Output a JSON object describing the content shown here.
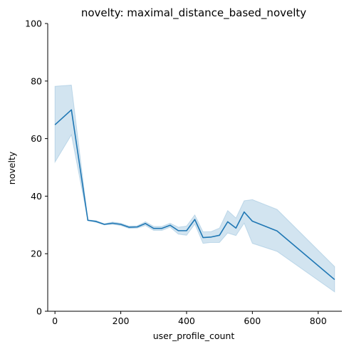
{
  "chart_data": {
    "type": "line",
    "title": "novelty: maximal_distance_based_novelty",
    "xlabel": "user_profile_count",
    "ylabel": "novelty",
    "xlim": [
      -22,
      872
    ],
    "ylim": [
      0,
      100
    ],
    "xticks": [
      0,
      200,
      400,
      600,
      800
    ],
    "yticks": [
      0,
      20,
      40,
      60,
      80,
      100
    ],
    "grid": false,
    "colors": {
      "line": "#1f77b4",
      "band": "#1f77b4"
    },
    "series": [
      {
        "x": [
          0,
          50,
          100,
          125,
          150,
          175,
          200,
          225,
          250,
          275,
          300,
          325,
          350,
          375,
          400,
          425,
          450,
          475,
          500,
          525,
          550,
          575,
          600,
          675,
          850
        ],
        "y": [
          64.8,
          70.0,
          31.6,
          31.2,
          30.2,
          30.6,
          30.2,
          29.2,
          29.3,
          30.5,
          28.8,
          28.8,
          29.9,
          28.0,
          28.0,
          31.9,
          25.6,
          25.8,
          26.4,
          31.1,
          28.9,
          34.5,
          31.3,
          27.9,
          11.0
        ],
        "ci_low": [
          51.8,
          61.3,
          31.6,
          30.9,
          30.0,
          30.2,
          29.8,
          28.8,
          28.9,
          29.8,
          28.1,
          28.1,
          29.2,
          26.8,
          26.4,
          30.3,
          23.6,
          23.9,
          23.9,
          27.2,
          26.3,
          30.6,
          23.6,
          20.8,
          6.7
        ],
        "ci_high": [
          78.2,
          78.6,
          31.7,
          31.5,
          30.4,
          31.0,
          30.6,
          29.6,
          29.7,
          31.1,
          29.5,
          29.5,
          30.6,
          29.2,
          29.6,
          33.5,
          27.6,
          27.7,
          28.9,
          35.0,
          32.4,
          38.4,
          38.8,
          35.4,
          15.5
        ]
      }
    ]
  }
}
